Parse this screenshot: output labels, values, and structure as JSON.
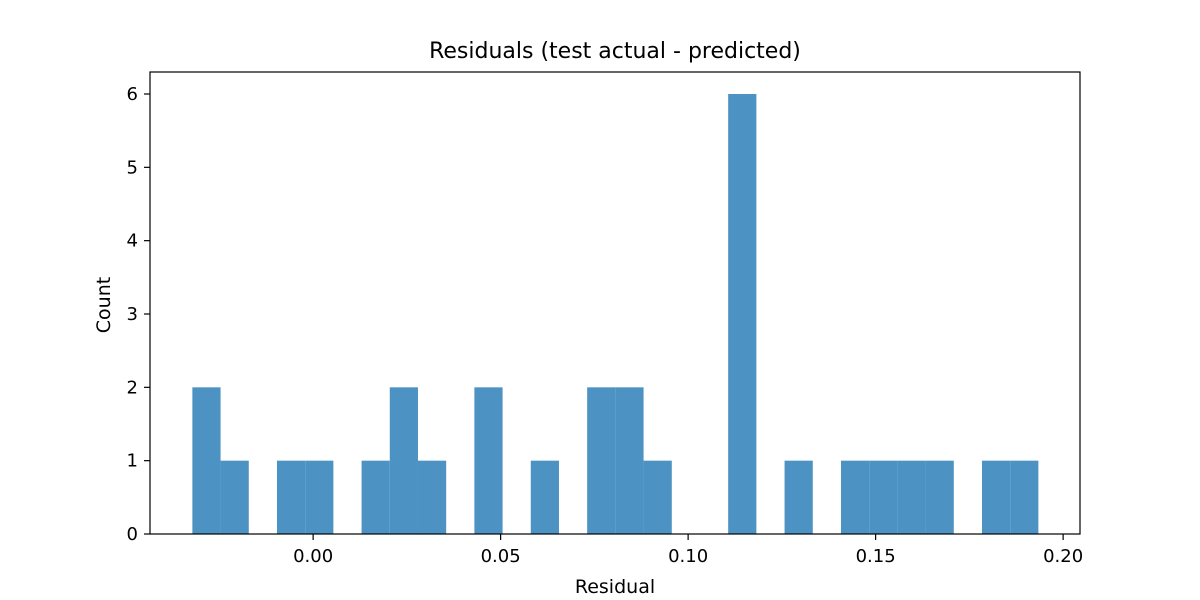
{
  "chart_data": {
    "type": "bar",
    "title": "Residuals (test actual - predicted)",
    "xlabel": "Residual",
    "ylabel": "Count",
    "xlim": [
      -0.0435,
      0.2045
    ],
    "ylim": [
      0,
      6.3
    ],
    "xticks": [
      {
        "value": 0.0,
        "label": "0.00"
      },
      {
        "value": 0.05,
        "label": "0.05"
      },
      {
        "value": 0.1,
        "label": "0.10"
      },
      {
        "value": 0.15,
        "label": "0.15"
      },
      {
        "value": 0.2,
        "label": "0.20"
      }
    ],
    "yticks": [
      {
        "value": 0,
        "label": "0"
      },
      {
        "value": 1,
        "label": "1"
      },
      {
        "value": 2,
        "label": "2"
      },
      {
        "value": 3,
        "label": "3"
      },
      {
        "value": 4,
        "label": "4"
      },
      {
        "value": 5,
        "label": "5"
      },
      {
        "value": 6,
        "label": "6"
      }
    ],
    "bin_start": -0.0322,
    "bin_width": 0.00752,
    "counts": [
      2,
      1,
      0,
      1,
      1,
      0,
      1,
      2,
      1,
      0,
      2,
      0,
      1,
      0,
      2,
      2,
      1,
      0,
      0,
      6,
      0,
      1,
      0,
      1,
      1,
      1,
      1,
      0,
      1,
      1
    ],
    "bar_color": "#4c92c3",
    "grid": false
  }
}
